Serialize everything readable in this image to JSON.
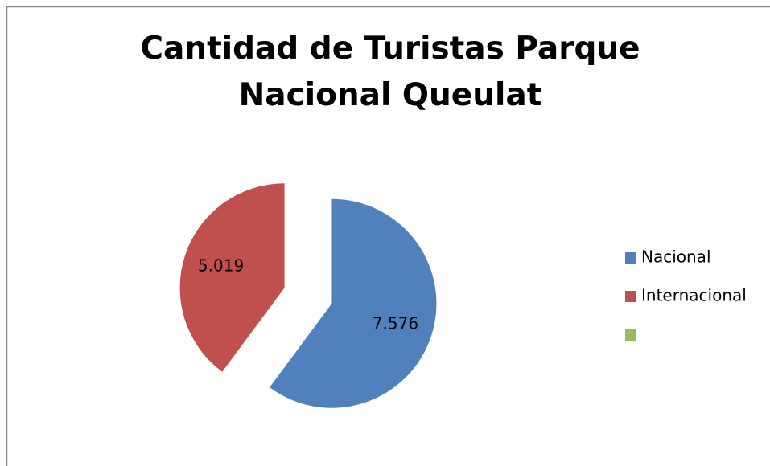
{
  "chart_data": {
    "type": "pie",
    "title": "Cantidad de Turistas Parque Nacional Queulat",
    "categories": [
      "Nacional",
      "Internacional",
      null
    ],
    "values": [
      7576,
      5019,
      0
    ],
    "value_labels": [
      "7.576",
      "5.019",
      null
    ],
    "colors": [
      "#4f81bd",
      "#c0504d",
      "#9bbb59"
    ],
    "exploded": true,
    "legend": "right"
  }
}
